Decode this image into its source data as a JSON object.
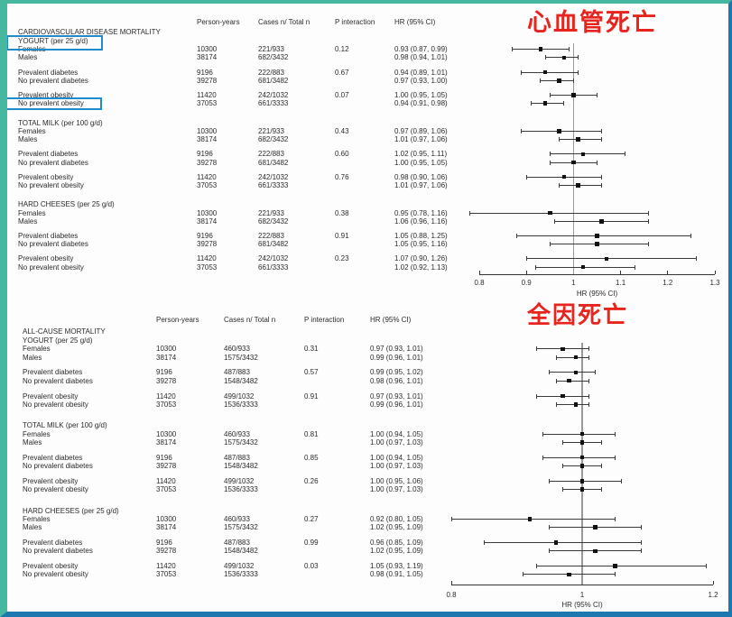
{
  "page": {
    "background": "#fdfdfd",
    "border_colors": {
      "teal": "#45b89f",
      "blue": "#1d78b0"
    },
    "highlight_box_color": "#1f8bcb",
    "text_color": "#2b2b2b"
  },
  "annotations": {
    "top_label": "心血管死亡",
    "bottom_label": "全因死亡",
    "color": "#e8241e"
  },
  "chart_data": [
    {
      "type": "forest",
      "title": "CARDIOVASCULAR DISEASE MORTALITY",
      "columns": [
        "Person-years",
        "Cases n/ Total n",
        "P interaction",
        "HR (95% CI)"
      ],
      "xlabel": "HR (95% CI)",
      "xlim": [
        0.8,
        1.3
      ],
      "xticks": [
        "0.8",
        "0.9",
        "1",
        "1.1",
        "1.2",
        "1.3"
      ],
      "refline": 1,
      "groups": [
        {
          "label": "YOGURT (per 25 g/d)",
          "highlighted": true,
          "pairs": [
            {
              "p_interaction": "0.12",
              "rows": [
                {
                  "label": "Females",
                  "person_years": "10300",
                  "cases": "221/933",
                  "hr_text": "0.93 (0.87, 0.99)",
                  "hr": 0.93,
                  "ci": [
                    0.87,
                    0.99
                  ]
                },
                {
                  "label": "Males",
                  "person_years": "38174",
                  "cases": "682/3432",
                  "hr_text": "0.98 (0.94, 1.01)",
                  "hr": 0.98,
                  "ci": [
                    0.94,
                    1.01
                  ]
                }
              ]
            },
            {
              "p_interaction": "0.67",
              "rows": [
                {
                  "label": "Prevalent diabetes",
                  "person_years": "9196",
                  "cases": "222/883",
                  "hr_text": "0.94 (0.89, 1.01)",
                  "hr": 0.94,
                  "ci": [
                    0.89,
                    1.01
                  ]
                },
                {
                  "label": "No prevalent diabetes",
                  "person_years": "39278",
                  "cases": "681/3482",
                  "hr_text": "0.97 (0.93, 1.00)",
                  "hr": 0.97,
                  "ci": [
                    0.93,
                    1.0
                  ]
                }
              ]
            },
            {
              "p_interaction": "0.07",
              "rows": [
                {
                  "label": "Prevalent obesity",
                  "person_years": "11420",
                  "cases": "242/1032",
                  "hr_text": "1.00 (0.95, 1.05)",
                  "hr": 1.0,
                  "ci": [
                    0.95,
                    1.05
                  ]
                },
                {
                  "label": "No prevalent obesity",
                  "person_years": "37053",
                  "cases": "661/3333",
                  "hr_text": "0.94 (0.91, 0.98)",
                  "hr": 0.94,
                  "ci": [
                    0.91,
                    0.98
                  ],
                  "highlighted": true
                }
              ]
            }
          ]
        },
        {
          "label": "TOTAL MILK (per 100 g/d)",
          "pairs": [
            {
              "p_interaction": "0.43",
              "rows": [
                {
                  "label": "Females",
                  "person_years": "10300",
                  "cases": "221/933",
                  "hr_text": "0.97 (0.89, 1.06)",
                  "hr": 0.97,
                  "ci": [
                    0.89,
                    1.06
                  ]
                },
                {
                  "label": "Males",
                  "person_years": "38174",
                  "cases": "682/3432",
                  "hr_text": "1.01 (0.97, 1.06)",
                  "hr": 1.01,
                  "ci": [
                    0.97,
                    1.06
                  ]
                }
              ]
            },
            {
              "p_interaction": "0.60",
              "rows": [
                {
                  "label": "Prevalent diabetes",
                  "person_years": "9196",
                  "cases": "222/883",
                  "hr_text": "1.02 (0.95, 1.11)",
                  "hr": 1.02,
                  "ci": [
                    0.95,
                    1.11
                  ]
                },
                {
                  "label": "No prevalent diabetes",
                  "person_years": "39278",
                  "cases": "681/3482",
                  "hr_text": "1.00 (0.95, 1.05)",
                  "hr": 1.0,
                  "ci": [
                    0.95,
                    1.05
                  ]
                }
              ]
            },
            {
              "p_interaction": "0.76",
              "rows": [
                {
                  "label": "Prevalent obesity",
                  "person_years": "11420",
                  "cases": "242/1032",
                  "hr_text": "0.98 (0.90, 1.06)",
                  "hr": 0.98,
                  "ci": [
                    0.9,
                    1.06
                  ]
                },
                {
                  "label": "No prevalent obesity",
                  "person_years": "37053",
                  "cases": "661/3333",
                  "hr_text": "1.01 (0.97, 1.06)",
                  "hr": 1.01,
                  "ci": [
                    0.97,
                    1.06
                  ]
                }
              ]
            }
          ]
        },
        {
          "label": "HARD CHEESES (per 25 g/d)",
          "pairs": [
            {
              "p_interaction": "0.38",
              "rows": [
                {
                  "label": "Females",
                  "person_years": "10300",
                  "cases": "221/933",
                  "hr_text": "0.95 (0.78, 1.16)",
                  "hr": 0.95,
                  "ci": [
                    0.78,
                    1.16
                  ]
                },
                {
                  "label": "Males",
                  "person_years": "38174",
                  "cases": "682/3432",
                  "hr_text": "1.06 (0.96, 1.16)",
                  "hr": 1.06,
                  "ci": [
                    0.96,
                    1.16
                  ]
                }
              ]
            },
            {
              "p_interaction": "0.91",
              "rows": [
                {
                  "label": "Prevalent diabetes",
                  "person_years": "9196",
                  "cases": "222/883",
                  "hr_text": "1.05 (0.88, 1.25)",
                  "hr": 1.05,
                  "ci": [
                    0.88,
                    1.25
                  ]
                },
                {
                  "label": "No prevalent diabetes",
                  "person_years": "39278",
                  "cases": "681/3482",
                  "hr_text": "1.05 (0.95, 1.16)",
                  "hr": 1.05,
                  "ci": [
                    0.95,
                    1.16
                  ]
                }
              ]
            },
            {
              "p_interaction": "0.23",
              "rows": [
                {
                  "label": "Prevalent obesity",
                  "person_years": "11420",
                  "cases": "242/1032",
                  "hr_text": "1.07 (0.90, 1.26)",
                  "hr": 1.07,
                  "ci": [
                    0.9,
                    1.26
                  ]
                },
                {
                  "label": "No prevalent obesity",
                  "person_years": "37053",
                  "cases": "661/3333",
                  "hr_text": "1.02 (0.92, 1.13)",
                  "hr": 1.02,
                  "ci": [
                    0.92,
                    1.13
                  ]
                }
              ]
            }
          ]
        }
      ]
    },
    {
      "type": "forest",
      "title": "ALL-CAUSE MORTALITY",
      "columns": [
        "Person-years",
        "Cases n/ Total n",
        "P interaction",
        "HR (95% CI)"
      ],
      "xlabel": "HR (95% CI)",
      "xlim": [
        0.8,
        1.2
      ],
      "xticks": [
        "0.8",
        "1",
        "1.2"
      ],
      "refline": 1,
      "groups": [
        {
          "label": "YOGURT (per 25 g/d)",
          "pairs": [
            {
              "p_interaction": "0.31",
              "rows": [
                {
                  "label": "Females",
                  "person_years": "10300",
                  "cases": "460/933",
                  "hr_text": "0.97 (0.93, 1.01)",
                  "hr": 0.97,
                  "ci": [
                    0.93,
                    1.01
                  ]
                },
                {
                  "label": "Males",
                  "person_years": "38174",
                  "cases": "1575/3432",
                  "hr_text": "0.99 (0.96, 1.01)",
                  "hr": 0.99,
                  "ci": [
                    0.96,
                    1.01
                  ]
                }
              ]
            },
            {
              "p_interaction": "0.57",
              "rows": [
                {
                  "label": "Prevalent diabetes",
                  "person_years": "9196",
                  "cases": "487/883",
                  "hr_text": "0.99 (0.95, 1.02)",
                  "hr": 0.99,
                  "ci": [
                    0.95,
                    1.02
                  ]
                },
                {
                  "label": "No prevalent diabetes",
                  "person_years": "39278",
                  "cases": "1548/3482",
                  "hr_text": "0.98 (0.96, 1.01)",
                  "hr": 0.98,
                  "ci": [
                    0.96,
                    1.01
                  ]
                }
              ]
            },
            {
              "p_interaction": "0.91",
              "rows": [
                {
                  "label": "Prevalent obesity",
                  "person_years": "11420",
                  "cases": "499/1032",
                  "hr_text": "0.97 (0.93, 1.01)",
                  "hr": 0.97,
                  "ci": [
                    0.93,
                    1.01
                  ]
                },
                {
                  "label": "No prevalent obesity",
                  "person_years": "37053",
                  "cases": "1536/3333",
                  "hr_text": "0.99 (0.96, 1.01)",
                  "hr": 0.99,
                  "ci": [
                    0.96,
                    1.01
                  ]
                }
              ]
            }
          ]
        },
        {
          "label": "TOTAL MILK (per 100 g/d)",
          "pairs": [
            {
              "p_interaction": "0.81",
              "rows": [
                {
                  "label": "Females",
                  "person_years": "10300",
                  "cases": "460/933",
                  "hr_text": "1.00 (0.94, 1.05)",
                  "hr": 1.0,
                  "ci": [
                    0.94,
                    1.05
                  ]
                },
                {
                  "label": "Males",
                  "person_years": "38174",
                  "cases": "1575/3432",
                  "hr_text": "1.00 (0.97, 1.03)",
                  "hr": 1.0,
                  "ci": [
                    0.97,
                    1.03
                  ]
                }
              ]
            },
            {
              "p_interaction": "0.85",
              "rows": [
                {
                  "label": "Prevalent diabetes",
                  "person_years": "9196",
                  "cases": "487/883",
                  "hr_text": "1.00 (0.94, 1.05)",
                  "hr": 1.0,
                  "ci": [
                    0.94,
                    1.05
                  ]
                },
                {
                  "label": "No prevalent diabetes",
                  "person_years": "39278",
                  "cases": "1548/3482",
                  "hr_text": "1.00 (0.97, 1.03)",
                  "hr": 1.0,
                  "ci": [
                    0.97,
                    1.03
                  ]
                }
              ]
            },
            {
              "p_interaction": "0.26",
              "rows": [
                {
                  "label": "Prevalent obesity",
                  "person_years": "11420",
                  "cases": "499/1032",
                  "hr_text": "1.00 (0.95, 1.06)",
                  "hr": 1.0,
                  "ci": [
                    0.95,
                    1.06
                  ]
                },
                {
                  "label": "No prevalent obesity",
                  "person_years": "37053",
                  "cases": "1536/3333",
                  "hr_text": "1.00 (0.97, 1.03)",
                  "hr": 1.0,
                  "ci": [
                    0.97,
                    1.03
                  ]
                }
              ]
            }
          ]
        },
        {
          "label": "HARD CHEESES (per 25 g/d)",
          "pairs": [
            {
              "p_interaction": "0.27",
              "rows": [
                {
                  "label": "Females",
                  "person_years": "10300",
                  "cases": "460/933",
                  "hr_text": "0.92 (0.80, 1.05)",
                  "hr": 0.92,
                  "ci": [
                    0.8,
                    1.05
                  ]
                },
                {
                  "label": "Males",
                  "person_years": "38174",
                  "cases": "1575/3432",
                  "hr_text": "1.02 (0.95, 1.09)",
                  "hr": 1.02,
                  "ci": [
                    0.95,
                    1.09
                  ]
                }
              ]
            },
            {
              "p_interaction": "0.99",
              "rows": [
                {
                  "label": "Prevalent diabetes",
                  "person_years": "9196",
                  "cases": "487/883",
                  "hr_text": "0.96 (0.85, 1.09)",
                  "hr": 0.96,
                  "ci": [
                    0.85,
                    1.09
                  ]
                },
                {
                  "label": "No prevalent diabetes",
                  "person_years": "39278",
                  "cases": "1548/3482",
                  "hr_text": "1.02 (0.95, 1.09)",
                  "hr": 1.02,
                  "ci": [
                    0.95,
                    1.09
                  ]
                }
              ]
            },
            {
              "p_interaction": "0.03",
              "rows": [
                {
                  "label": "Prevalent obesity",
                  "person_years": "11420",
                  "cases": "499/1032",
                  "hr_text": "1.05 (0.93, 1.19)",
                  "hr": 1.05,
                  "ci": [
                    0.93,
                    1.19
                  ]
                },
                {
                  "label": "No prevalent obesity",
                  "person_years": "37053",
                  "cases": "1536/3333",
                  "hr_text": "0.98 (0.91, 1.05)",
                  "hr": 0.98,
                  "ci": [
                    0.91,
                    1.05
                  ]
                }
              ]
            }
          ]
        }
      ]
    }
  ]
}
